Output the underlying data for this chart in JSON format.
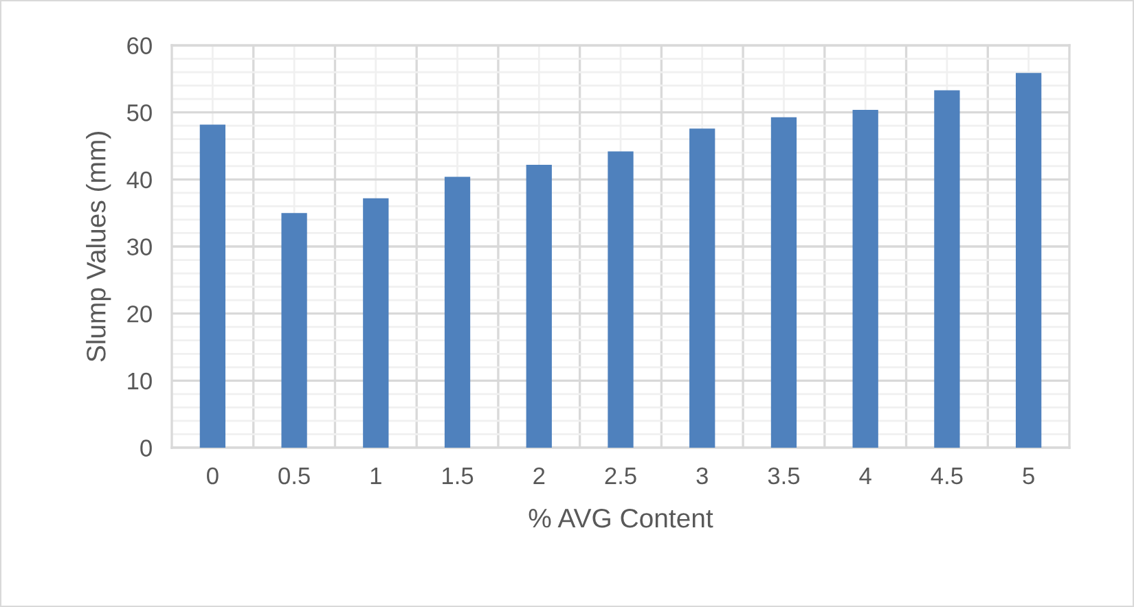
{
  "chart_data": {
    "type": "bar",
    "xlabel": "% AVG Content",
    "ylabel": "Slump Values (mm)",
    "categories": [
      "0",
      "0.5",
      "1",
      "1.5",
      "2",
      "2.5",
      "3",
      "3.5",
      "4",
      "4.5",
      "5"
    ],
    "values": [
      48.1,
      34.9,
      37.1,
      40.3,
      42.1,
      44.1,
      47.5,
      49.2,
      50.3,
      53.2,
      55.8
    ],
    "color": "#4f81bd",
    "ylim": [
      0,
      60
    ],
    "yticks": [
      0,
      10,
      20,
      30,
      40,
      50,
      60
    ],
    "grid": true
  }
}
